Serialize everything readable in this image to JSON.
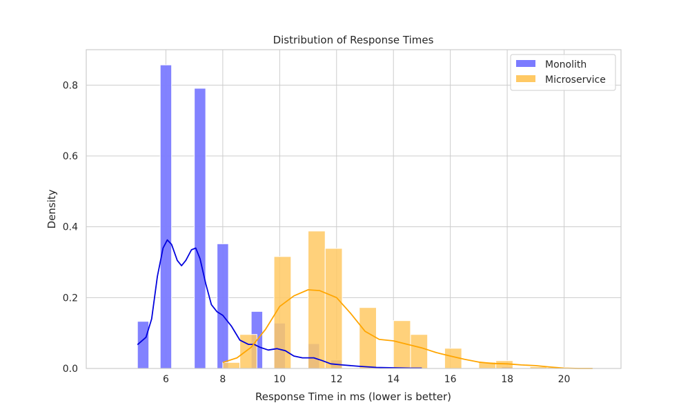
{
  "chart_data": {
    "type": "bar",
    "title": "Distribution of Response Times",
    "xlabel": "Response Time in ms (lower is better)",
    "ylabel": "Density",
    "xlim": [
      3.2,
      22.0
    ],
    "ylim": [
      0,
      0.9
    ],
    "xticks": [
      6,
      8,
      10,
      12,
      14,
      16,
      18,
      20
    ],
    "yticks": [
      0.0,
      0.2,
      0.4,
      0.6,
      0.8
    ],
    "grid": true,
    "legend_position": "top-right",
    "series": [
      {
        "name": "Monolith",
        "color": "#7b7bff",
        "kde_color": "#0000dd",
        "bars": [
          {
            "x0": 5.0,
            "x1": 5.4,
            "y": 0.133
          },
          {
            "x0": 5.8,
            "x1": 6.2,
            "y": 0.857
          },
          {
            "x0": 7.0,
            "x1": 7.4,
            "y": 0.791
          },
          {
            "x0": 7.8,
            "x1": 8.2,
            "y": 0.352
          },
          {
            "x0": 9.0,
            "x1": 9.4,
            "y": 0.161
          },
          {
            "x0": 9.8,
            "x1": 10.2,
            "y": 0.128
          },
          {
            "x0": 11.0,
            "x1": 11.4,
            "y": 0.07
          },
          {
            "x0": 11.8,
            "x1": 12.2,
            "y": 0.024
          },
          {
            "x0": 17.8,
            "x1": 18.2,
            "y": 0.005
          }
        ],
        "kde": [
          [
            5.0,
            0.067
          ],
          [
            5.3,
            0.088
          ],
          [
            5.5,
            0.14
          ],
          [
            5.7,
            0.26
          ],
          [
            5.9,
            0.34
          ],
          [
            6.05,
            0.363
          ],
          [
            6.2,
            0.35
          ],
          [
            6.4,
            0.305
          ],
          [
            6.55,
            0.29
          ],
          [
            6.7,
            0.305
          ],
          [
            6.9,
            0.335
          ],
          [
            7.05,
            0.34
          ],
          [
            7.2,
            0.31
          ],
          [
            7.4,
            0.24
          ],
          [
            7.6,
            0.18
          ],
          [
            7.8,
            0.16
          ],
          [
            8.0,
            0.15
          ],
          [
            8.3,
            0.12
          ],
          [
            8.6,
            0.08
          ],
          [
            8.9,
            0.068
          ],
          [
            9.1,
            0.068
          ],
          [
            9.3,
            0.06
          ],
          [
            9.6,
            0.052
          ],
          [
            9.9,
            0.056
          ],
          [
            10.2,
            0.05
          ],
          [
            10.5,
            0.035
          ],
          [
            10.8,
            0.03
          ],
          [
            11.2,
            0.03
          ],
          [
            11.5,
            0.022
          ],
          [
            11.8,
            0.013
          ],
          [
            12.2,
            0.01
          ],
          [
            12.8,
            0.006
          ],
          [
            13.4,
            0.003
          ],
          [
            14.0,
            0.002
          ],
          [
            14.6,
            0.001
          ],
          [
            15.0,
            0.001
          ]
        ]
      },
      {
        "name": "Microservice",
        "color": "#ffc964",
        "kde_color": "#ffa500",
        "bars": [
          {
            "x0": 8.0,
            "x1": 8.6,
            "y": 0.017
          },
          {
            "x0": 8.6,
            "x1": 9.2,
            "y": 0.096
          },
          {
            "x0": 9.8,
            "x1": 10.4,
            "y": 0.316
          },
          {
            "x0": 11.0,
            "x1": 11.6,
            "y": 0.388
          },
          {
            "x0": 11.6,
            "x1": 12.2,
            "y": 0.339
          },
          {
            "x0": 12.8,
            "x1": 13.4,
            "y": 0.172
          },
          {
            "x0": 14.0,
            "x1": 14.6,
            "y": 0.135
          },
          {
            "x0": 14.6,
            "x1": 15.2,
            "y": 0.096
          },
          {
            "x0": 15.8,
            "x1": 16.4,
            "y": 0.057
          },
          {
            "x0": 17.0,
            "x1": 17.6,
            "y": 0.018
          },
          {
            "x0": 17.6,
            "x1": 18.2,
            "y": 0.022
          },
          {
            "x0": 18.8,
            "x1": 19.4,
            "y": 0.005
          },
          {
            "x0": 19.4,
            "x1": 20.0,
            "y": 0.003
          },
          {
            "x0": 20.0,
            "x1": 20.6,
            "y": 0.002
          },
          {
            "x0": 20.6,
            "x1": 21.1,
            "y": 0.002
          }
        ],
        "kde": [
          [
            8.0,
            0.017
          ],
          [
            8.5,
            0.03
          ],
          [
            9.0,
            0.06
          ],
          [
            9.5,
            0.11
          ],
          [
            10.0,
            0.175
          ],
          [
            10.5,
            0.205
          ],
          [
            11.0,
            0.222
          ],
          [
            11.4,
            0.22
          ],
          [
            12.0,
            0.2
          ],
          [
            12.5,
            0.155
          ],
          [
            13.0,
            0.105
          ],
          [
            13.5,
            0.082
          ],
          [
            14.0,
            0.078
          ],
          [
            14.5,
            0.068
          ],
          [
            15.0,
            0.058
          ],
          [
            15.5,
            0.045
          ],
          [
            16.0,
            0.035
          ],
          [
            16.5,
            0.026
          ],
          [
            17.0,
            0.018
          ],
          [
            17.5,
            0.014
          ],
          [
            18.0,
            0.013
          ],
          [
            18.5,
            0.01
          ],
          [
            19.0,
            0.008
          ],
          [
            19.5,
            0.004
          ],
          [
            20.0,
            0.001
          ],
          [
            20.5,
            0.0
          ],
          [
            21.0,
            0.0
          ]
        ]
      }
    ]
  }
}
